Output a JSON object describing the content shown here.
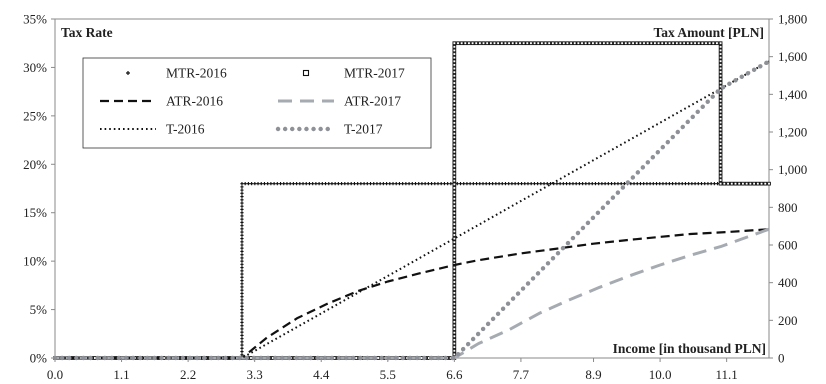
{
  "chart_data": {
    "type": "line",
    "left_axis_title": "Tax Rate",
    "right_axis_title": "Tax Amount [PLN]",
    "x_axis_title": "Income [in thousand PLN]",
    "x_ticks": [
      "0.0",
      "1.1",
      "2.2",
      "3.3",
      "4.4",
      "5.5",
      "6.6",
      "7.7",
      "8.9",
      "10.0",
      "11.1"
    ],
    "x_tick_values": [
      0.0,
      1.1,
      2.2,
      3.3,
      4.4,
      5.5,
      6.6,
      7.7,
      8.9,
      10.0,
      11.1
    ],
    "xlim": [
      0,
      11.8
    ],
    "y_left_ticks": [
      "0%",
      "5%",
      "10%",
      "15%",
      "20%",
      "25%",
      "30%",
      "35%"
    ],
    "y_left_values": [
      0,
      5,
      10,
      15,
      20,
      25,
      30,
      35
    ],
    "ylim_left": [
      0,
      35
    ],
    "y_right_ticks": [
      "0",
      "200",
      "400",
      "600",
      "800",
      "1,000",
      "1,200",
      "1,400",
      "1,600",
      "1,800"
    ],
    "y_right_values": [
      0,
      200,
      400,
      600,
      800,
      1000,
      1200,
      1400,
      1600,
      1800
    ],
    "ylim_right": [
      0,
      1800
    ],
    "grid": false,
    "legend_position": "top-left",
    "series": [
      {
        "name": "MTR-2016",
        "axis": "left",
        "style": "plus-markers",
        "color": "#111111",
        "x": [
          0,
          3.09,
          3.09,
          11.8
        ],
        "y": [
          0,
          0,
          18,
          18
        ]
      },
      {
        "name": "MTR-2017",
        "axis": "left",
        "style": "square-markers",
        "color": "#111111",
        "x": [
          0,
          6.6,
          6.6,
          11.0,
          11.0,
          11.8
        ],
        "y": [
          0,
          0,
          32.5,
          32.5,
          18,
          18
        ]
      },
      {
        "name": "ATR-2016",
        "axis": "left",
        "style": "dash",
        "color": "#111111",
        "x": [
          0,
          3.09,
          3.5,
          4.0,
          4.5,
          5.0,
          5.5,
          6.0,
          6.6,
          7.0,
          7.7,
          8.3,
          8.9,
          9.5,
          10.0,
          10.5,
          11.1,
          11.8
        ],
        "y": [
          0,
          0,
          2.1,
          4.1,
          5.6,
          6.9,
          7.9,
          8.7,
          9.6,
          10.1,
          10.8,
          11.3,
          11.8,
          12.2,
          12.5,
          12.8,
          13.0,
          13.3
        ]
      },
      {
        "name": "ATR-2017",
        "axis": "left",
        "style": "long-dash",
        "color": "#a6abb2",
        "x": [
          0,
          6.6,
          7.0,
          7.5,
          8.0,
          8.5,
          9.0,
          9.5,
          10.0,
          10.5,
          11.0,
          11.8
        ],
        "y": [
          0,
          0,
          1.5,
          2.9,
          4.6,
          6.0,
          7.3,
          8.5,
          9.6,
          10.6,
          11.5,
          13.3
        ]
      },
      {
        "name": "T-2016",
        "axis": "right",
        "style": "dot",
        "color": "#111111",
        "x": [
          0,
          3.09,
          11.8
        ],
        "y": [
          0,
          0,
          1575
        ]
      },
      {
        "name": "T-2017",
        "axis": "right",
        "style": "big-dot",
        "color": "#8e9197",
        "x": [
          0,
          6.6,
          11.0,
          11.8
        ],
        "y": [
          0,
          0,
          1430,
          1575
        ]
      }
    ]
  }
}
